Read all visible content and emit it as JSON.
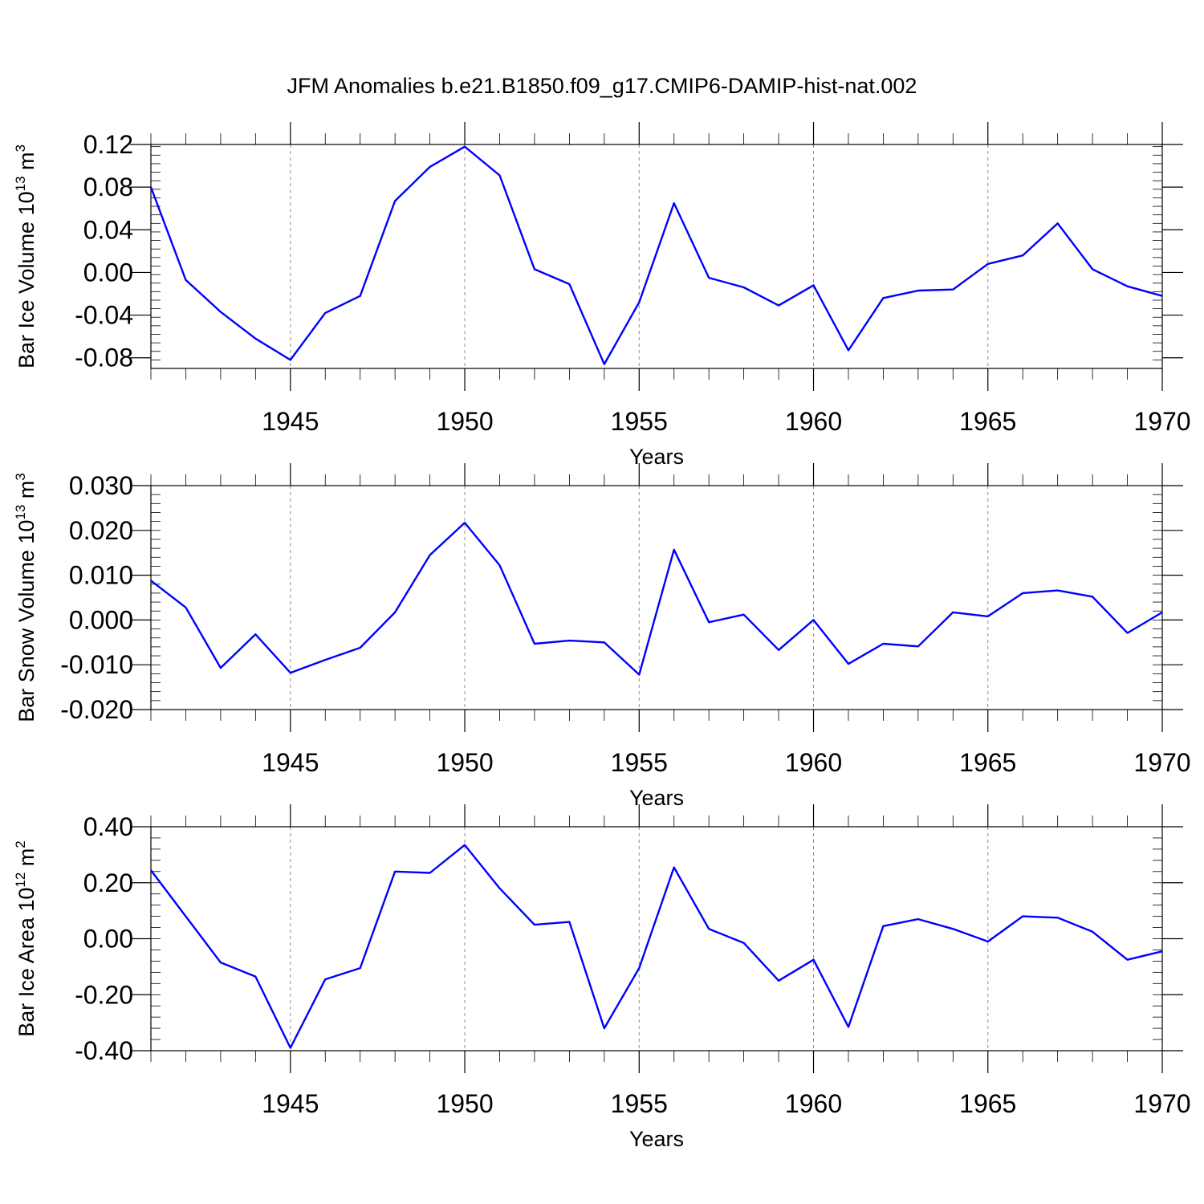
{
  "title": "JFM Anomalies b.e21.B1850.f09_g17.CMIP6-DAMIP-hist-nat.002",
  "chart_data": [
    {
      "type": "line",
      "ylabel": "Bar Ice Volume 10",
      "ylabel_sup": "13",
      "ylabel_unit": " m",
      "ylabel_unit_sup": "3",
      "xlabel": "Years",
      "xlim": [
        1941,
        1970
      ],
      "ylim": [
        -0.09,
        0.12
      ],
      "yticks": [
        -0.08,
        -0.04,
        0.0,
        0.04,
        0.08,
        0.12
      ],
      "ytick_labels": [
        "-0.08",
        "-0.04",
        "0.00",
        "0.04",
        "0.08",
        "0.12"
      ],
      "yminor_step": 0.008,
      "xticks": [
        1945,
        1950,
        1955,
        1960,
        1965,
        1970
      ],
      "xtick_labels": [
        "1945",
        "1950",
        "1955",
        "1960",
        "1965",
        "1970"
      ],
      "grid": "vertical dashed at labeled years",
      "color": "#0000ff",
      "x": [
        1941,
        1942,
        1943,
        1944,
        1945,
        1946,
        1947,
        1948,
        1949,
        1950,
        1951,
        1952,
        1953,
        1954,
        1955,
        1956,
        1957,
        1958,
        1959,
        1960,
        1961,
        1962,
        1963,
        1964,
        1965,
        1966,
        1967,
        1968,
        1969,
        1970
      ],
      "values": [
        0.08,
        -0.007,
        -0.037,
        -0.062,
        -0.082,
        -0.038,
        -0.022,
        0.067,
        0.099,
        0.118,
        0.091,
        0.003,
        -0.011,
        -0.086,
        -0.028,
        0.065,
        -0.005,
        -0.014,
        -0.031,
        -0.012,
        -0.073,
        -0.024,
        -0.017,
        -0.016,
        0.008,
        0.016,
        0.046,
        0.003,
        -0.013,
        -0.022
      ]
    },
    {
      "type": "line",
      "ylabel": "Bar Snow Volume 10",
      "ylabel_sup": "13",
      "ylabel_unit": " m",
      "ylabel_unit_sup": "3",
      "xlabel": "Years",
      "xlim": [
        1941,
        1970
      ],
      "ylim": [
        -0.02,
        0.03
      ],
      "yticks": [
        -0.02,
        -0.01,
        0.0,
        0.01,
        0.02,
        0.03
      ],
      "ytick_labels": [
        "-0.020",
        "-0.010",
        "0.000",
        "0.010",
        "0.020",
        "0.030"
      ],
      "yminor_step": 0.002,
      "xticks": [
        1945,
        1950,
        1955,
        1960,
        1965,
        1970
      ],
      "xtick_labels": [
        "1945",
        "1950",
        "1955",
        "1960",
        "1965",
        "1970"
      ],
      "grid": "vertical dashed at labeled years",
      "color": "#0000ff",
      "x": [
        1941,
        1942,
        1943,
        1944,
        1945,
        1946,
        1947,
        1948,
        1949,
        1950,
        1951,
        1952,
        1953,
        1954,
        1955,
        1956,
        1957,
        1958,
        1959,
        1960,
        1961,
        1962,
        1963,
        1964,
        1965,
        1966,
        1967,
        1968,
        1969,
        1970
      ],
      "values": [
        0.0088,
        0.0028,
        -0.0107,
        -0.0032,
        -0.0118,
        -0.0089,
        -0.0062,
        0.0017,
        0.0145,
        0.0217,
        0.0122,
        -0.0053,
        -0.0046,
        -0.005,
        -0.0122,
        0.0157,
        -0.0005,
        0.0012,
        -0.0067,
        0.0,
        -0.0098,
        -0.0053,
        -0.0059,
        0.0017,
        0.0008,
        0.006,
        0.0066,
        0.0052,
        -0.0029,
        0.0017
      ]
    },
    {
      "type": "line",
      "ylabel": "Bar Ice Area 10",
      "ylabel_sup": "12",
      "ylabel_unit": " m",
      "ylabel_unit_sup": "2",
      "xlabel": "Years",
      "xlim": [
        1941,
        1970
      ],
      "ylim": [
        -0.4,
        0.4
      ],
      "yticks": [
        -0.4,
        -0.2,
        0.0,
        0.2,
        0.4
      ],
      "ytick_labels": [
        "-0.40",
        "-0.20",
        "0.00",
        "0.20",
        "0.40"
      ],
      "yminor_step": 0.04,
      "xticks": [
        1945,
        1950,
        1955,
        1960,
        1965,
        1970
      ],
      "xtick_labels": [
        "1945",
        "1950",
        "1955",
        "1960",
        "1965",
        "1970"
      ],
      "grid": "vertical dashed at labeled years",
      "color": "#0000ff",
      "x": [
        1941,
        1942,
        1943,
        1944,
        1945,
        1946,
        1947,
        1948,
        1949,
        1950,
        1951,
        1952,
        1953,
        1954,
        1955,
        1956,
        1957,
        1958,
        1959,
        1960,
        1961,
        1962,
        1963,
        1964,
        1965,
        1966,
        1967,
        1968,
        1969,
        1970
      ],
      "values": [
        0.245,
        0.08,
        -0.085,
        -0.135,
        -0.39,
        -0.145,
        -0.105,
        0.24,
        0.235,
        0.335,
        0.18,
        0.05,
        0.06,
        -0.32,
        -0.105,
        0.255,
        0.035,
        -0.015,
        -0.15,
        -0.075,
        -0.315,
        0.045,
        0.07,
        0.035,
        -0.01,
        0.08,
        0.075,
        0.025,
        -0.075,
        -0.045
      ]
    }
  ]
}
